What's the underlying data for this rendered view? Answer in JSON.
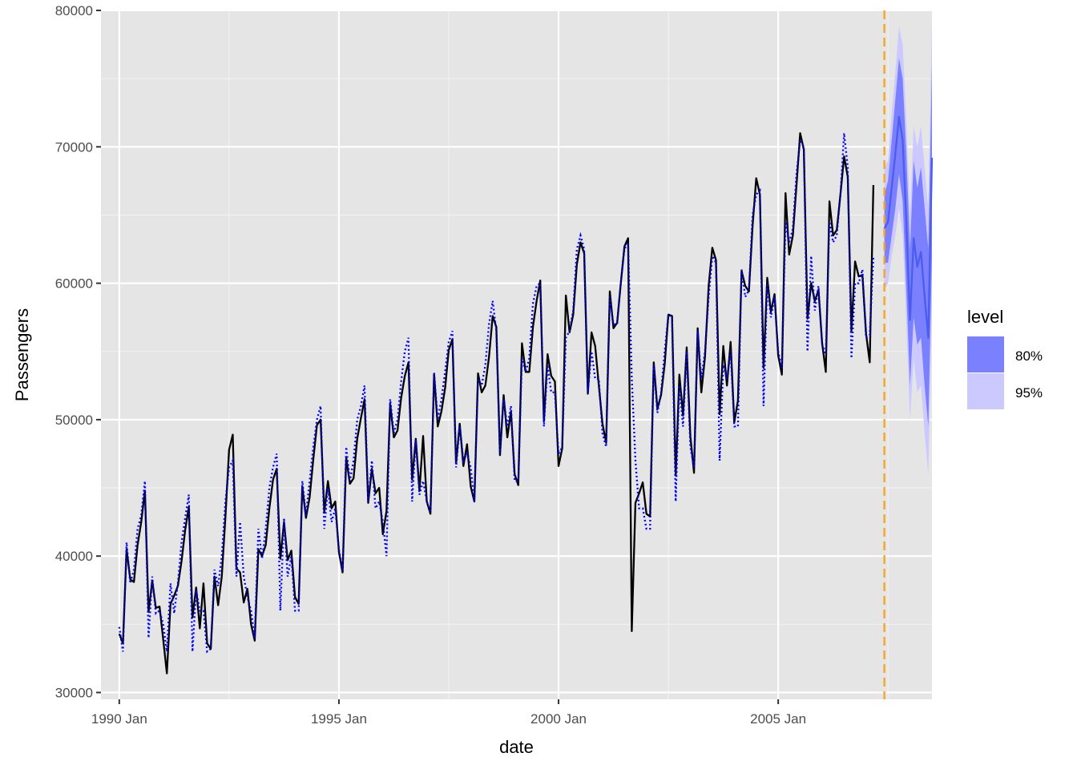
{
  "chart_data": {
    "type": "line",
    "xlabel": "date",
    "ylabel": "Passengers",
    "x_ticks": [
      "1990 Jan",
      "1995 Jan",
      "2000 Jan",
      "2005 Jan"
    ],
    "y_ticks": [
      "30000",
      "40000",
      "50000",
      "60000",
      "70000",
      "80000"
    ],
    "ylim": [
      29500,
      80000
    ],
    "xlim": [
      "1989-08",
      "2008-07"
    ],
    "grid": true,
    "background": "#e5e5e5",
    "forecast_start": "2007-06",
    "colors": {
      "actual": "#000000",
      "fitted": "#0000ff",
      "forecast_mean": "#4b5cf0",
      "band80": "#7b80ff",
      "band95": "#cbc9ff",
      "forecast_line": "#f5a623"
    },
    "series": [
      {
        "key": "actual",
        "start": "1990-01",
        "values": [
          34300,
          33600,
          40500,
          38300,
          38100,
          40800,
          42500,
          44800,
          35900,
          38200,
          36200,
          36300,
          33900,
          31400,
          36500,
          37100,
          37800,
          39600,
          41900,
          43600,
          35500,
          37700,
          34700,
          38000,
          33600,
          33200,
          38500,
          36400,
          38500,
          42900,
          47800,
          48900,
          39100,
          38800,
          36600,
          37600,
          35000,
          33800,
          40500,
          40000,
          40800,
          43500,
          45600,
          46400,
          39800,
          42500,
          39700,
          40400,
          37000,
          36500,
          45100,
          42800,
          44300,
          47100,
          49600,
          50000,
          43200,
          45500,
          43500,
          44000,
          40300,
          38800,
          47200,
          45300,
          45700,
          48600,
          50100,
          51500,
          43900,
          46400,
          44600,
          45000,
          41600,
          43300,
          51200,
          48700,
          49200,
          51600,
          53200,
          54200,
          45600,
          48600,
          44800,
          48800,
          44000,
          43100,
          53300,
          49500,
          50600,
          52300,
          55100,
          55900,
          46800,
          49700,
          46600,
          48200,
          45100,
          44000,
          53400,
          52000,
          52500,
          54600,
          57600,
          56800,
          47400,
          51800,
          48700,
          50600,
          46000,
          45200,
          55600,
          53500,
          53500,
          56800,
          58700,
          60200,
          49900,
          54800,
          53200,
          52800,
          46600,
          47900,
          59100,
          56400,
          57700,
          61400,
          63000,
          62200,
          51900,
          56400,
          55400,
          52500,
          49700,
          48300,
          59400,
          56700,
          57100,
          60000,
          62700,
          63300,
          34500,
          43900,
          44600,
          45400,
          43100,
          42900,
          54200,
          50800,
          51800,
          54100,
          57700,
          57600,
          45900,
          53300,
          50300,
          55300,
          48800,
          46100,
          56700,
          52000,
          54600,
          59800,
          62600,
          61700,
          50400,
          55400,
          52500,
          55700,
          49800,
          51400,
          60900,
          59800,
          59400,
          64200,
          67700,
          66500,
          53800,
          60400,
          57900,
          59200,
          54700,
          53300,
          66600,
          62100,
          63500,
          67200,
          71000,
          69800,
          57400,
          60000,
          58700,
          59500,
          55600,
          53500,
          66000,
          63500,
          63900,
          66500,
          69300,
          67800,
          56500,
          61600,
          60500,
          60600,
          56300,
          54200,
          67200
        ]
      },
      {
        "key": "fitted",
        "start": "1990-01",
        "values": [
          34800,
          33000,
          41000,
          38000,
          39000,
          42000,
          43000,
          45500,
          34000,
          38500,
          35800,
          36000,
          35000,
          33000,
          38000,
          35800,
          38000,
          41000,
          42800,
          44500,
          33000,
          37500,
          36000,
          36000,
          33000,
          33200,
          39000,
          37800,
          40000,
          44000,
          46500,
          47000,
          38500,
          42500,
          38500,
          37000,
          36000,
          34000,
          42000,
          39800,
          42000,
          45000,
          46500,
          47500,
          36000,
          42800,
          38500,
          40000,
          36000,
          36000,
          45500,
          43000,
          45500,
          48000,
          50000,
          51000,
          42000,
          45000,
          42500,
          43500,
          40500,
          39000,
          48000,
          45500,
          47000,
          50000,
          51000,
          52500,
          44000,
          47000,
          43500,
          44000,
          42500,
          40000,
          51500,
          49000,
          50000,
          52800,
          55000,
          56000,
          44000,
          48500,
          44500,
          45500,
          44000,
          43200,
          53500,
          50000,
          51500,
          53500,
          55700,
          56500,
          46500,
          49500,
          47000,
          47500,
          46500,
          44000,
          53000,
          52500,
          54000,
          57000,
          58700,
          56500,
          47500,
          51500,
          49500,
          51000,
          45500,
          45500,
          54500,
          53500,
          54500,
          58500,
          59800,
          60000,
          49500,
          54000,
          52000,
          52000,
          47500,
          48000,
          56000,
          56500,
          58000,
          62500,
          63500,
          62500,
          52000,
          55000,
          53000,
          53000,
          49000,
          48000,
          59000,
          57000,
          57000,
          60000,
          62500,
          63000,
          53000,
          47000,
          43500,
          43500,
          42000,
          42000,
          54000,
          50500,
          52000,
          55000,
          57700,
          57500,
          44000,
          52500,
          49500,
          55000,
          48000,
          46500,
          56500,
          53000,
          55000,
          59000,
          62000,
          61500,
          47000,
          54000,
          53000,
          55000,
          49500,
          49500,
          61000,
          59000,
          59500,
          65000,
          66500,
          66800,
          51000,
          60000,
          57500,
          59000,
          55000,
          53800,
          64500,
          63000,
          64000,
          68000,
          70500,
          70000,
          55000,
          62000,
          58000,
          59800,
          55500,
          54800,
          64500,
          63000,
          63500,
          66500,
          71000,
          68500,
          54500,
          60000,
          60000,
          61000,
          56000,
          56200,
          62000
        ]
      },
      {
        "key": "forecast_mean",
        "start": "2007-06",
        "values": [
          64000,
          64500,
          67000,
          69500,
          72200,
          70500,
          64500,
          57300,
          63300,
          61200,
          62300,
          59000,
          56000,
          69200
        ]
      }
    ],
    "band80": {
      "start": "2007-06",
      "lower": [
        61500,
        61500,
        63500,
        65500,
        68000,
        66000,
        59500,
        52500,
        57500,
        55500,
        56000,
        52500,
        49500,
        62000
      ],
      "upper": [
        66500,
        67500,
        70500,
        73500,
        76500,
        75000,
        69500,
        62500,
        69000,
        67000,
        68500,
        65500,
        62500,
        76000
      ]
    },
    "band95": {
      "start": "2007-06",
      "lower": [
        59500,
        60000,
        62000,
        63500,
        65500,
        63500,
        57000,
        50000,
        54500,
        52000,
        52500,
        49000,
        46000,
        58500
      ],
      "upper": [
        68500,
        69000,
        72500,
        75500,
        78800,
        77500,
        72000,
        65000,
        71500,
        70000,
        71500,
        68500,
        65500,
        79500
      ]
    },
    "legend": {
      "title": "level",
      "position": "right",
      "items": [
        {
          "label": "80%",
          "color": "#7b80ff"
        },
        {
          "label": "95%",
          "color": "#cbc9ff"
        }
      ]
    }
  }
}
